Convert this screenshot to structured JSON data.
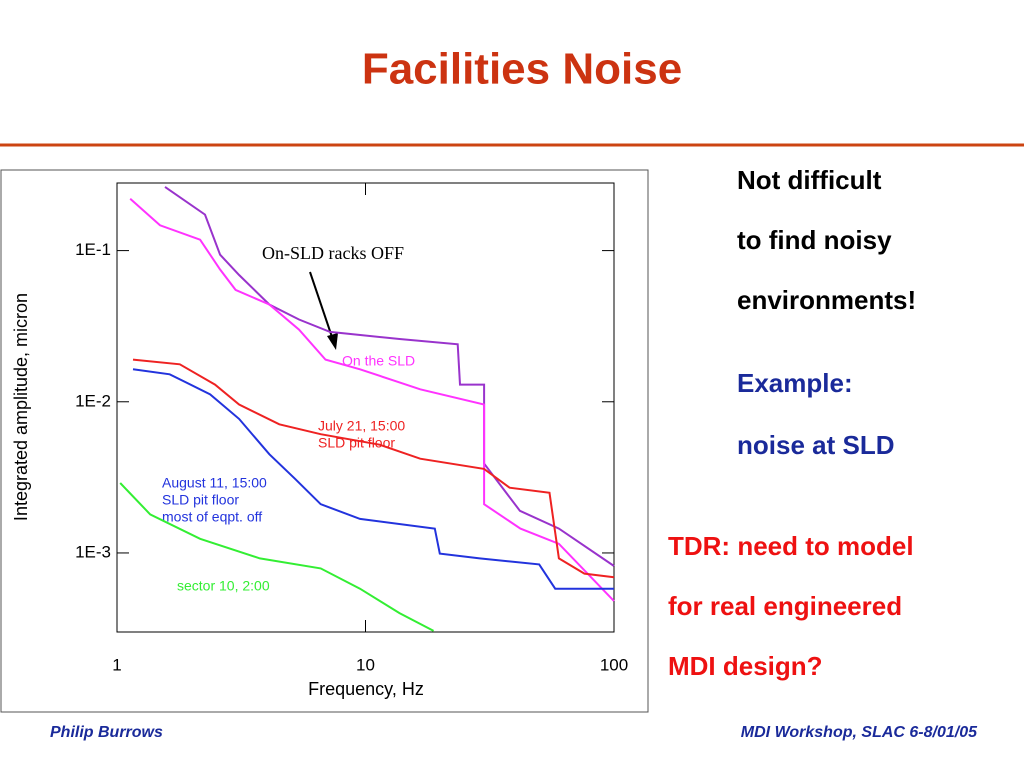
{
  "title": "Facilities Noise",
  "notes": [
    "Not difficult",
    "to find noisy",
    "environments!"
  ],
  "example": [
    "Example:",
    "noise at SLD"
  ],
  "tdr": [
    "TDR: need to model",
    "for real engineered",
    "MDI design?"
  ],
  "footer": {
    "left": "Philip Burrows",
    "right": "MDI Workshop, SLAC 6-8/01/05"
  },
  "chart_data": {
    "type": "line",
    "xlabel": "Frequency, Hz",
    "ylabel": "Integrated amplitude, micron",
    "log_x": true,
    "log_y": true,
    "xlim": [
      1,
      100
    ],
    "xticks": [
      1,
      10,
      100
    ],
    "ylim": [
      0.0003,
      0.28
    ],
    "yticks": [
      {
        "value": 0.1,
        "label": "1E-1"
      },
      {
        "value": 0.01,
        "label": "1E-2"
      },
      {
        "value": 0.001,
        "label": "1E-3"
      }
    ],
    "annotation": "On-SLD racks OFF",
    "series": [
      {
        "color": "#9933cc",
        "x": [
          1.56,
          2.26,
          2.6,
          3.1,
          4.1,
          5.4,
          7.2,
          13.7,
          23.5,
          24,
          30,
          30,
          41.8,
          60,
          100
        ],
        "values": [
          0.264,
          0.173,
          0.094,
          0.069,
          0.044,
          0.035,
          0.029,
          0.026,
          0.024,
          0.013,
          0.013,
          0.0039,
          0.0019,
          0.00145,
          0.00082
        ]
      },
      {
        "color": "#ff33ff",
        "label_lines": [
          "On the SLD"
        ],
        "x": [
          1.13,
          1.49,
          2.16,
          2.6,
          3.0,
          4.1,
          5.4,
          6.9,
          9.5,
          16.6,
          30,
          30,
          42,
          60,
          100
        ],
        "values": [
          0.22,
          0.147,
          0.118,
          0.075,
          0.055,
          0.044,
          0.03,
          0.019,
          0.0164,
          0.0121,
          0.0096,
          0.0021,
          0.00145,
          0.00115,
          0.00048
        ]
      },
      {
        "color": "#ee2222",
        "label_lines": [
          "July 21, 15:00",
          "SLD pit floor"
        ],
        "x": [
          1.16,
          1.79,
          2.48,
          3.1,
          4.5,
          6.6,
          11.4,
          16.6,
          30,
          38,
          55,
          60,
          76,
          100
        ],
        "values": [
          0.019,
          0.0177,
          0.013,
          0.0096,
          0.0071,
          0.0061,
          0.0052,
          0.0042,
          0.0036,
          0.0027,
          0.0025,
          0.00092,
          0.00073,
          0.00069
        ]
      },
      {
        "color": "#2233dd",
        "label_lines": [
          "August 11, 15:00",
          "SLD pit floor",
          "most of eqpt. off"
        ],
        "x": [
          1.16,
          1.63,
          2.37,
          3.1,
          4.1,
          5.2,
          6.6,
          9.5,
          19,
          19.9,
          28.8,
          50,
          58,
          100
        ],
        "values": [
          0.0164,
          0.0152,
          0.0112,
          0.0077,
          0.0045,
          0.0031,
          0.0021,
          0.00168,
          0.00145,
          0.00099,
          0.00092,
          0.00084,
          0.00058,
          0.00058
        ]
      },
      {
        "color": "#33ee33",
        "label_lines": [
          "sector 10, 2:00"
        ],
        "x": [
          1.03,
          1.36,
          2.16,
          3.76,
          6.6,
          9.5,
          13.7,
          18.8
        ],
        "values": [
          0.0029,
          0.0018,
          0.00124,
          0.00092,
          0.00079,
          0.00058,
          0.0004,
          0.000305
        ]
      }
    ]
  }
}
